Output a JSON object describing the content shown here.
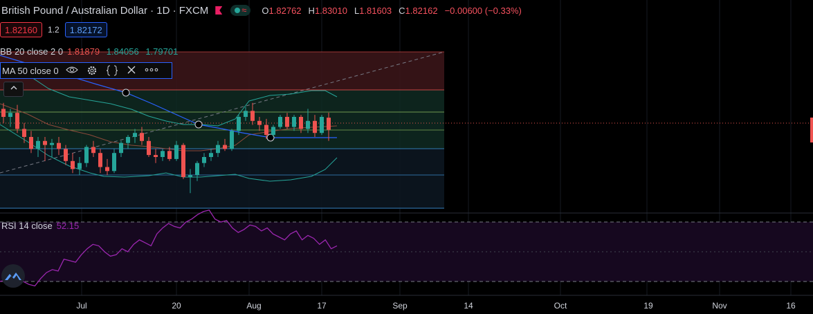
{
  "header": {
    "symbol_title": "British Pound / Australian Dollar · 1D · FXCM",
    "market_status_icon": "market-open-dot",
    "waves_icon": "≈",
    "ohlc": {
      "o_label": "O",
      "o": "1.82762",
      "h_label": "H",
      "h": "1.83010",
      "l_label": "L",
      "l": "1.81603",
      "c_label": "C",
      "c": "1.82162",
      "change": "−0.00600 (−0.33%)"
    }
  },
  "trade": {
    "sell_price": "1.82160",
    "spread": "1.2",
    "buy_price": "1.82172"
  },
  "indicators": {
    "bb": {
      "label": "BB 20 close 2 0",
      "v1": "1.81879",
      "v2": "1.84056",
      "v3": "1.79701"
    },
    "ma": {
      "label": "MA 50 close 0"
    },
    "rsi": {
      "label": "RSI 14 close",
      "value": "52.15"
    }
  },
  "time_axis": [
    "Jul",
    "20",
    "Aug",
    "17",
    "Sep",
    "14",
    "Oct",
    "19",
    "Nov",
    "16"
  ],
  "colors": {
    "up": "#26a69a",
    "down": "#ef5350",
    "ma": "#2962ff",
    "bb_band": "#26a69a",
    "rsi": "#9c27b0"
  },
  "chart_data": {
    "type": "candlestick",
    "candles": [
      {
        "o": 1.832,
        "h": 1.835,
        "l": 1.825,
        "c": 1.828
      },
      {
        "o": 1.828,
        "h": 1.832,
        "l": 1.823,
        "c": 1.83
      },
      {
        "o": 1.83,
        "h": 1.834,
        "l": 1.82,
        "c": 1.822
      },
      {
        "o": 1.822,
        "h": 1.825,
        "l": 1.815,
        "c": 1.818
      },
      {
        "o": 1.818,
        "h": 1.821,
        "l": 1.81,
        "c": 1.812
      },
      {
        "o": 1.812,
        "h": 1.818,
        "l": 1.808,
        "c": 1.816
      },
      {
        "o": 1.816,
        "h": 1.818,
        "l": 1.806,
        "c": 1.814
      },
      {
        "o": 1.814,
        "h": 1.817,
        "l": 1.808,
        "c": 1.815
      },
      {
        "o": 1.815,
        "h": 1.818,
        "l": 1.809,
        "c": 1.812
      },
      {
        "o": 1.812,
        "h": 1.814,
        "l": 1.804,
        "c": 1.806
      },
      {
        "o": 1.806,
        "h": 1.81,
        "l": 1.8,
        "c": 1.802
      },
      {
        "o": 1.802,
        "h": 1.808,
        "l": 1.799,
        "c": 1.805
      },
      {
        "o": 1.805,
        "h": 1.814,
        "l": 1.803,
        "c": 1.813
      },
      {
        "o": 1.813,
        "h": 1.816,
        "l": 1.808,
        "c": 1.81
      },
      {
        "o": 1.81,
        "h": 1.812,
        "l": 1.8,
        "c": 1.803
      },
      {
        "o": 1.803,
        "h": 1.807,
        "l": 1.799,
        "c": 1.801
      },
      {
        "o": 1.801,
        "h": 1.812,
        "l": 1.8,
        "c": 1.81
      },
      {
        "o": 1.81,
        "h": 1.816,
        "l": 1.808,
        "c": 1.815
      },
      {
        "o": 1.815,
        "h": 1.819,
        "l": 1.812,
        "c": 1.818
      },
      {
        "o": 1.818,
        "h": 1.822,
        "l": 1.815,
        "c": 1.82
      },
      {
        "o": 1.82,
        "h": 1.823,
        "l": 1.814,
        "c": 1.816
      },
      {
        "o": 1.816,
        "h": 1.818,
        "l": 1.808,
        "c": 1.809
      },
      {
        "o": 1.809,
        "h": 1.812,
        "l": 1.805,
        "c": 1.808
      },
      {
        "o": 1.808,
        "h": 1.812,
        "l": 1.806,
        "c": 1.811
      },
      {
        "o": 1.811,
        "h": 1.813,
        "l": 1.806,
        "c": 1.807
      },
      {
        "o": 1.807,
        "h": 1.816,
        "l": 1.806,
        "c": 1.814
      },
      {
        "o": 1.814,
        "h": 1.815,
        "l": 1.797,
        "c": 1.798
      },
      {
        "o": 1.798,
        "h": 1.802,
        "l": 1.79,
        "c": 1.799
      },
      {
        "o": 1.799,
        "h": 1.806,
        "l": 1.796,
        "c": 1.805
      },
      {
        "o": 1.805,
        "h": 1.81,
        "l": 1.803,
        "c": 1.808
      },
      {
        "o": 1.808,
        "h": 1.812,
        "l": 1.806,
        "c": 1.81
      },
      {
        "o": 1.81,
        "h": 1.816,
        "l": 1.808,
        "c": 1.814
      },
      {
        "o": 1.814,
        "h": 1.817,
        "l": 1.811,
        "c": 1.812
      },
      {
        "o": 1.812,
        "h": 1.822,
        "l": 1.811,
        "c": 1.821
      },
      {
        "o": 1.821,
        "h": 1.829,
        "l": 1.819,
        "c": 1.828
      },
      {
        "o": 1.828,
        "h": 1.833,
        "l": 1.826,
        "c": 1.831
      },
      {
        "o": 1.831,
        "h": 1.835,
        "l": 1.824,
        "c": 1.826
      },
      {
        "o": 1.826,
        "h": 1.828,
        "l": 1.821,
        "c": 1.824
      },
      {
        "o": 1.824,
        "h": 1.827,
        "l": 1.817,
        "c": 1.819
      },
      {
        "o": 1.819,
        "h": 1.824,
        "l": 1.818,
        "c": 1.823
      },
      {
        "o": 1.823,
        "h": 1.829,
        "l": 1.822,
        "c": 1.828
      },
      {
        "o": 1.828,
        "h": 1.83,
        "l": 1.822,
        "c": 1.823
      },
      {
        "o": 1.823,
        "h": 1.829,
        "l": 1.821,
        "c": 1.828
      },
      {
        "o": 1.828,
        "h": 1.829,
        "l": 1.82,
        "c": 1.822
      },
      {
        "o": 1.822,
        "h": 1.832,
        "l": 1.82,
        "c": 1.826
      },
      {
        "o": 1.826,
        "h": 1.829,
        "l": 1.818,
        "c": 1.82
      },
      {
        "o": 1.82,
        "h": 1.829,
        "l": 1.819,
        "c": 1.828
      },
      {
        "o": 1.8276,
        "h": 1.8301,
        "l": 1.816,
        "c": 1.8216
      }
    ],
    "ma50": [
      1.868,
      1.862,
      1.857,
      1.852,
      1.847,
      1.843,
      1.838,
      1.834,
      1.83,
      1.826,
      1.823,
      1.82,
      1.817,
      1.815,
      1.813,
      1.811,
      1.81,
      1.809,
      1.808,
      1.807
    ],
    "rsi": [
      30,
      31,
      33,
      32,
      30,
      28,
      27,
      32,
      36,
      38,
      37,
      45,
      44,
      43,
      48,
      52,
      55,
      54,
      50,
      47,
      48,
      52,
      50,
      55,
      58,
      56,
      54,
      62,
      66,
      69,
      67,
      66,
      70,
      72,
      75,
      77,
      78,
      72,
      70,
      71,
      66,
      63,
      65,
      68,
      67,
      64,
      66,
      62,
      60,
      58,
      62,
      64,
      58,
      61,
      59,
      55,
      58,
      52,
      54
    ],
    "price_axis_visible": false
  }
}
